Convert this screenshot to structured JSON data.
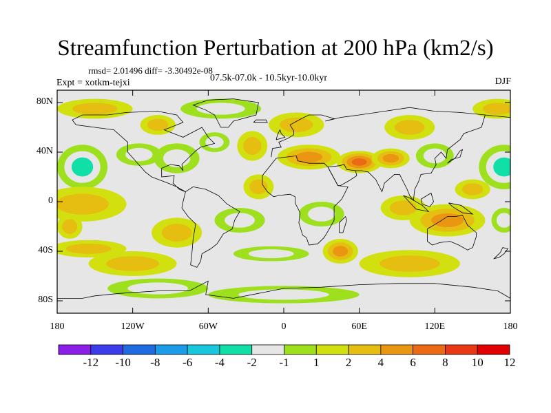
{
  "colors": {
    "ocean": "#e6e6e6",
    "palette": [
      "#8a1fe8",
      "#3c3ce8",
      "#1f6be0",
      "#1c9be8",
      "#18c7dc",
      "#10e0a8",
      "#e6e6e6",
      "#9ee01e",
      "#d2e010",
      "#e6be12",
      "#ea9612",
      "#ea6a16",
      "#e83814",
      "#e00000"
    ]
  },
  "chart_data": {
    "type": "contour-map",
    "title": "Streamfunction Perturbation at 200 hPa (km2/s)",
    "stats_text": "rmsd= 2.01496  diff= -3.30492e-08",
    "experiment_text": "Expt = xotkm-tejxi",
    "period_text": "07.5k-07.0k - 10.5kyr-10.0kyr",
    "season": "DJF",
    "x_axis": {
      "range": [
        -180,
        180
      ],
      "ticks": [
        {
          "value": -180,
          "label": "180"
        },
        {
          "value": -120,
          "label": "120W"
        },
        {
          "value": -60,
          "label": "60W"
        },
        {
          "value": 0,
          "label": "0"
        },
        {
          "value": 60,
          "label": "60E"
        },
        {
          "value": 120,
          "label": "120E"
        },
        {
          "value": 180,
          "label": "180"
        }
      ]
    },
    "y_axis": {
      "range": [
        -90,
        90
      ],
      "ticks": [
        {
          "value": 80,
          "label": "80N"
        },
        {
          "value": 40,
          "label": "40N"
        },
        {
          "value": 0,
          "label": "0"
        },
        {
          "value": -40,
          "label": "40S"
        },
        {
          "value": -80,
          "label": "80S"
        }
      ]
    },
    "colorbar": {
      "levels": [
        "-12",
        "-10",
        "-8",
        "-6",
        "-4",
        "-2",
        "-1",
        "1",
        "2",
        "4",
        "6",
        "8",
        "10",
        "12"
      ],
      "level_values": [
        -12,
        -10,
        -8,
        -6,
        -4,
        -2,
        -1,
        1,
        2,
        4,
        6,
        8,
        10,
        12
      ]
    },
    "field_features": [
      {
        "lon": -150,
        "lat": 75,
        "value": 2.5,
        "rx": 30,
        "ry": 8
      },
      {
        "lon": -160,
        "lat": 28,
        "value": -4.0,
        "rx": 20,
        "ry": 18
      },
      {
        "lon": -160,
        "lat": -2,
        "value": 3.8,
        "rx": 35,
        "ry": 14
      },
      {
        "lon": -170,
        "lat": -20,
        "value": 2.5,
        "rx": 10,
        "ry": 10
      },
      {
        "lon": -155,
        "lat": -38,
        "value": 2.5,
        "rx": 30,
        "ry": 7
      },
      {
        "lon": -115,
        "lat": 38,
        "value": -2.8,
        "rx": 18,
        "ry": 9
      },
      {
        "lon": -100,
        "lat": 62,
        "value": 2.0,
        "rx": 14,
        "ry": 8
      },
      {
        "lon": -85,
        "lat": 35,
        "value": -3.0,
        "rx": 18,
        "ry": 12
      },
      {
        "lon": -50,
        "lat": 75,
        "value": -3.0,
        "rx": 32,
        "ry": 8
      },
      {
        "lon": -55,
        "lat": 48,
        "value": -2.2,
        "rx": 12,
        "ry": 8
      },
      {
        "lon": -25,
        "lat": 45,
        "value": 2.5,
        "rx": 12,
        "ry": 12
      },
      {
        "lon": -85,
        "lat": -25,
        "value": 2.5,
        "rx": 20,
        "ry": 12
      },
      {
        "lon": -35,
        "lat": -15,
        "value": -2.5,
        "rx": 20,
        "ry": 10
      },
      {
        "lon": -20,
        "lat": 12,
        "value": 2.2,
        "rx": 12,
        "ry": 10
      },
      {
        "lon": -10,
        "lat": -42,
        "value": -2.5,
        "rx": 30,
        "ry": 6
      },
      {
        "lon": -120,
        "lat": -50,
        "value": 2.5,
        "rx": 35,
        "ry": 10
      },
      {
        "lon": -100,
        "lat": -70,
        "value": -2.5,
        "rx": 40,
        "ry": 8
      },
      {
        "lon": 20,
        "lat": 36,
        "value": 5.0,
        "rx": 25,
        "ry": 10
      },
      {
        "lon": 60,
        "lat": 32,
        "value": 7.5,
        "rx": 18,
        "ry": 9
      },
      {
        "lon": 85,
        "lat": 35,
        "value": 4.0,
        "rx": 15,
        "ry": 8
      },
      {
        "lon": 10,
        "lat": 62,
        "value": 2.2,
        "rx": 22,
        "ry": 10
      },
      {
        "lon": 45,
        "lat": -40,
        "value": 4.0,
        "rx": 14,
        "ry": 10
      },
      {
        "lon": 30,
        "lat": -10,
        "value": -2.5,
        "rx": 18,
        "ry": 10
      },
      {
        "lon": 100,
        "lat": 60,
        "value": 2.5,
        "rx": 20,
        "ry": 10
      },
      {
        "lon": 120,
        "lat": 37,
        "value": -3.0,
        "rx": 15,
        "ry": 10
      },
      {
        "lon": 130,
        "lat": -15,
        "value": 5.0,
        "rx": 30,
        "ry": 13
      },
      {
        "lon": 95,
        "lat": -5,
        "value": 3.5,
        "rx": 18,
        "ry": 10
      },
      {
        "lon": 100,
        "lat": -50,
        "value": 3.5,
        "rx": 40,
        "ry": 11
      },
      {
        "lon": 175,
        "lat": 28,
        "value": -4.0,
        "rx": 20,
        "ry": 18
      },
      {
        "lon": 175,
        "lat": -15,
        "value": -2.2,
        "rx": 10,
        "ry": 10
      },
      {
        "lon": 170,
        "lat": 75,
        "value": 2.2,
        "rx": 20,
        "ry": 8
      },
      {
        "lon": 0,
        "lat": -75,
        "value": -2.0,
        "rx": 60,
        "ry": 7
      },
      {
        "lon": 150,
        "lat": 10,
        "value": 2.0,
        "rx": 14,
        "ry": 8
      }
    ]
  }
}
